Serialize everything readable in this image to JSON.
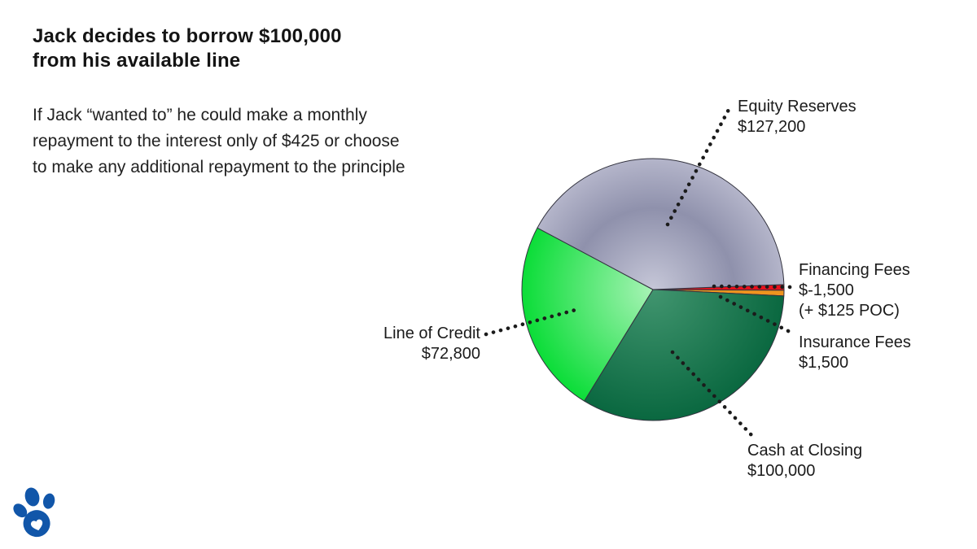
{
  "page": {
    "background": "#ffffff"
  },
  "header": {
    "title_line1": "Jack decides to borrow $100,000",
    "title_line2": "from his available line",
    "body_line1": "If Jack “wanted to” he could make a monthly",
    "body_line2": "repayment to the interest only of $425 or choose",
    "body_line3": "to make any additional repayment to the principle"
  },
  "logo": {
    "name": "paw-with-heart",
    "color": "#1156a9"
  },
  "chart_data": {
    "type": "pie",
    "title": "",
    "legend_position": "callout-labels",
    "direction": "clockwise",
    "start_angle_deg": 2.2,
    "total": 303000,
    "leader_dot_color": "#1b1b1b",
    "segments": [
      {
        "id": "financing_fees",
        "label": "Financing Fees",
        "value": 1500,
        "amount_display": "$-1,500",
        "note": "(+ $125 POC)",
        "color": "#e8101b"
      },
      {
        "id": "insurance_fees",
        "label": "Insurance Fees",
        "value": 1500,
        "amount_display": "$1,500",
        "color": "#ef941f"
      },
      {
        "id": "cash_at_closing",
        "label": "Cash at Closing",
        "value": 100000,
        "amount_display": "$100,000",
        "color_center": "#41956f",
        "color_edge": "#0a6840"
      },
      {
        "id": "line_of_credit",
        "label": "Line of Credit",
        "value": 72800,
        "amount_display": "$72,800",
        "color_center": "#a8f3b6",
        "color_edge": "#0bdd38"
      },
      {
        "id": "equity_reserves",
        "label": "Equity Reserves",
        "value": 127200,
        "amount_display": "$127,200",
        "color_center": "#c6c7d8",
        "color_mid": "#8f91ac",
        "color_edge": "#b4b5ca"
      }
    ]
  }
}
